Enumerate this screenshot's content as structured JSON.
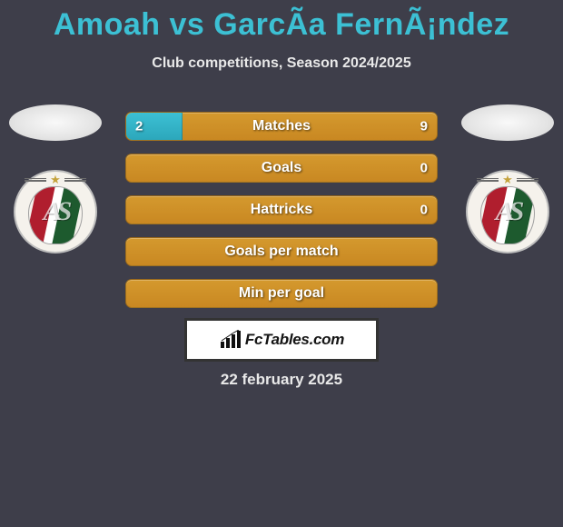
{
  "title": "Amoah vs GarcÃ­a FernÃ¡ndez",
  "subtitle": "Club competitions, Season 2024/2025",
  "date_text": "22 february 2025",
  "brand": "FcTables.com",
  "colors": {
    "background": "#3e3e4a",
    "title": "#3cc0d4",
    "text_light": "#e9e9e9",
    "bar_base": "#ca8b24",
    "bar_left_fill": "#33b6ca",
    "brand_box_border": "#333333"
  },
  "rows": [
    {
      "label": "Matches",
      "left": "2",
      "right": "9",
      "left_fill_pct": 18,
      "show_values": true
    },
    {
      "label": "Goals",
      "left": "",
      "right": "0",
      "left_fill_pct": 0,
      "show_values": true
    },
    {
      "label": "Hattricks",
      "left": "",
      "right": "0",
      "left_fill_pct": 0,
      "show_values": true
    },
    {
      "label": "Goals per match",
      "left": "",
      "right": "",
      "left_fill_pct": 0,
      "show_values": false
    },
    {
      "label": "Min per goal",
      "left": "",
      "right": "",
      "left_fill_pct": 0,
      "show_values": false
    }
  ]
}
